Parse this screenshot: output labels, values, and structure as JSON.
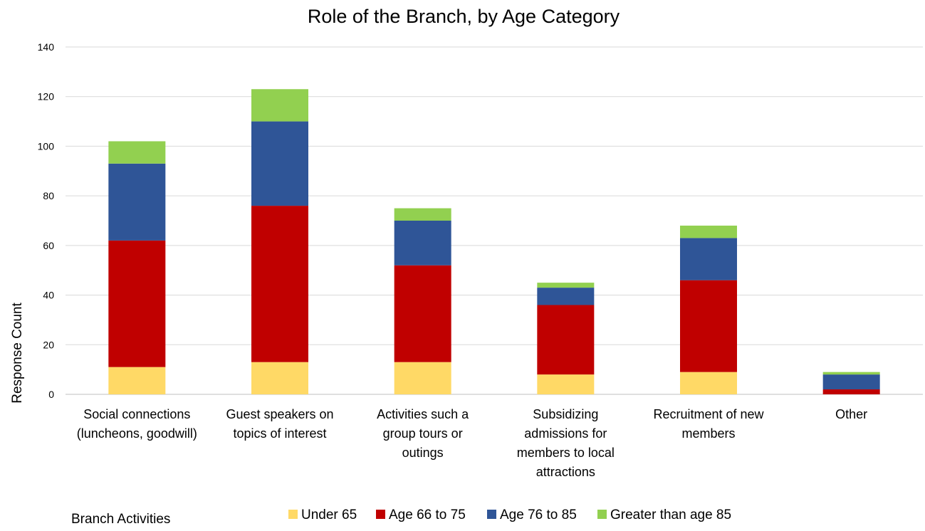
{
  "chart_data": {
    "type": "bar",
    "stacked": true,
    "title": "Role of the Branch, by Age Category",
    "xlabel": "Branch Activities",
    "ylabel": "Response Count",
    "ylim": [
      0,
      140
    ],
    "yticks": [
      0,
      20,
      40,
      60,
      80,
      100,
      120,
      140
    ],
    "grid": true,
    "legend_position": "bottom",
    "categories": [
      [
        "Social connections",
        "(luncheons, goodwill)"
      ],
      [
        "Guest speakers on",
        "topics of interest"
      ],
      [
        "Activities such a",
        "group tours or",
        "outings"
      ],
      [
        "Subsidizing",
        "admissions for",
        "members to local",
        "attractions"
      ],
      [
        "Recruitment of new",
        "members"
      ],
      [
        "Other"
      ]
    ],
    "series": [
      {
        "name": "Under 65",
        "color": "#FFD966",
        "values": [
          11,
          13,
          13,
          8,
          9,
          0
        ]
      },
      {
        "name": "Age 66 to 75",
        "color": "#C00000",
        "values": [
          51,
          63,
          39,
          28,
          37,
          2
        ]
      },
      {
        "name": "Age 76 to 85",
        "color": "#2F5597",
        "values": [
          31,
          34,
          18,
          7,
          17,
          6
        ]
      },
      {
        "name": "Greater than age 85",
        "color": "#92D050",
        "values": [
          9,
          13,
          5,
          2,
          5,
          1
        ]
      }
    ]
  }
}
